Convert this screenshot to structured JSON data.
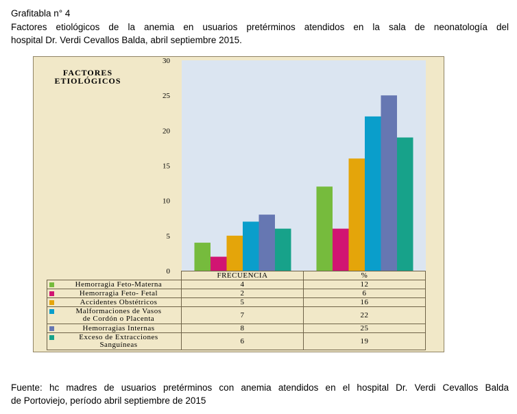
{
  "caption": {
    "line1": "Grafitabla  n° 4",
    "line2": "Factores etiológicos de la anemia en usuarios pretérminos atendidos en la sala de neonatología del",
    "line3": "hospital Dr. Verdi  Cevallos Balda, abril septiembre 2015."
  },
  "source": {
    "line1": "Fuente: hc madres de usuarios pretérminos con anemia atendidos en el hospital Dr. Verdi  Cevallos Balda",
    "line2": "de Portoviejo, período abril septiembre  de 2015"
  },
  "chart_data": {
    "type": "bar",
    "title_lines": [
      "FACTORES",
      "ETIOLÓGICOS"
    ],
    "categories": [
      "FRECUENCIA",
      "%"
    ],
    "ylim": [
      0,
      30
    ],
    "yticks": [
      "0",
      "5",
      "10",
      "15",
      "20",
      "25",
      "30"
    ],
    "grid": false,
    "legend": "table-bottom",
    "plot_bg": "#dbe5f1",
    "frame_bg": "#f1e8c8",
    "series": [
      {
        "name": "Hemorragia Feto-Materna",
        "name_lines": [
          "Hemorragia Feto-Materna"
        ],
        "color": "#76bb3d",
        "values": [
          4,
          12
        ],
        "value_labels": [
          "4",
          "12"
        ]
      },
      {
        "name": "Hemorragia Feto- Fetal",
        "name_lines": [
          "Hemorragia Feto- Fetal"
        ],
        "color": "#d11572",
        "values": [
          2,
          6
        ],
        "value_labels": [
          "2",
          "6"
        ]
      },
      {
        "name": "Accidentes Obstétricos",
        "name_lines": [
          "Accidentes Obstétricos"
        ],
        "color": "#e4a50a",
        "values": [
          5,
          16
        ],
        "value_labels": [
          "5",
          "16"
        ]
      },
      {
        "name": "Malformaciones de Vasos de Cordón o Placenta",
        "name_lines": [
          "Malformaciones de Vasos",
          "de Cordón o Placenta"
        ],
        "color": "#0a9ecb",
        "values": [
          7,
          22
        ],
        "value_labels": [
          "7",
          "22"
        ]
      },
      {
        "name": "Hemorragias Internas",
        "name_lines": [
          "Hemorragias Internas"
        ],
        "color": "#6677b2",
        "values": [
          8,
          25
        ],
        "value_labels": [
          "8",
          "25"
        ]
      },
      {
        "name": "Exceso de Extracciones Sanguíneas",
        "name_lines": [
          "Exceso de Extracciones",
          "Sanguíneas"
        ],
        "color": "#17a28a",
        "values": [
          6,
          19
        ],
        "value_labels": [
          "6",
          "19"
        ]
      }
    ]
  }
}
